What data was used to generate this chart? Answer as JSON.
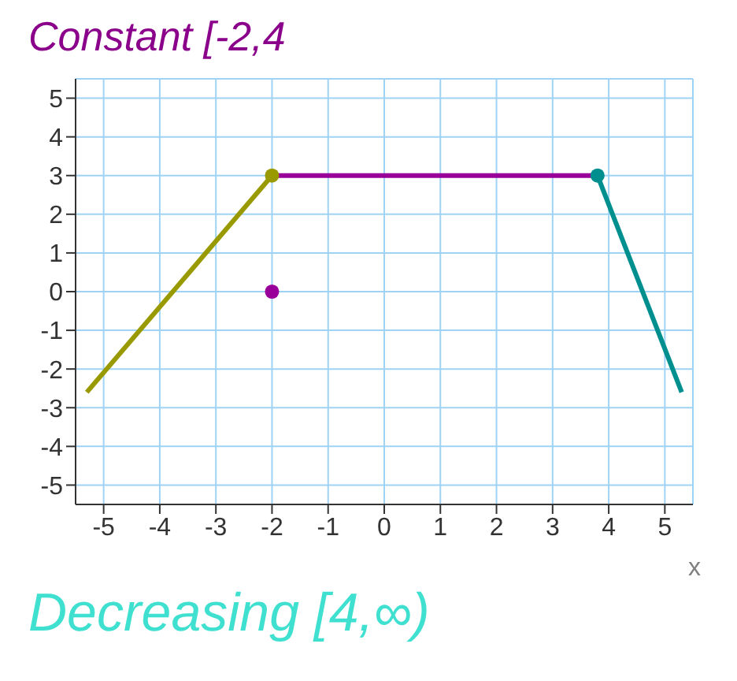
{
  "chart_data": {
    "type": "line",
    "xlabel": "x",
    "annotations": [
      "Constant [-2,4",
      "Decreasing [4,∞)"
    ],
    "series": [
      {
        "color": "#999900",
        "x": [
          -5.3,
          -2
        ],
        "values": [
          -2.6,
          3
        ]
      },
      {
        "color": "#990099",
        "x": [
          -2,
          3.8
        ],
        "values": [
          3,
          3
        ]
      },
      {
        "color": "#008f8f",
        "x": [
          3.8,
          5.3
        ],
        "values": [
          3,
          -2.6
        ]
      },
      {
        "type": "scatter",
        "x": [
          -2,
          3.8,
          -2
        ],
        "values": [
          3,
          3,
          0
        ],
        "colors": [
          "#999900",
          "#008f8f",
          "#990099"
        ]
      }
    ],
    "xlim": [
      -5.5,
      5.5
    ],
    "ylim": [
      -5.5,
      5.5
    ],
    "xticks": [
      -5,
      -4,
      -3,
      -2,
      -1,
      0,
      1,
      2,
      3,
      4,
      5
    ],
    "yticks": [
      -5,
      -4,
      -3,
      -2,
      -1,
      0,
      1,
      2,
      3,
      4,
      5
    ],
    "grid": true
  }
}
